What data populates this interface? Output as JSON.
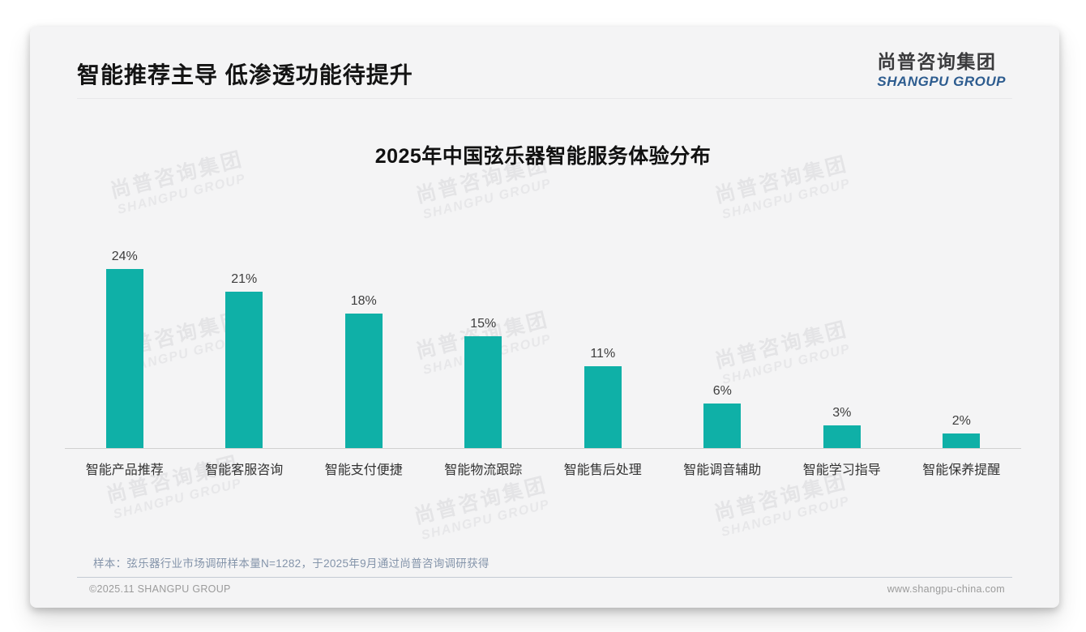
{
  "page_title": "智能推荐主导 低渗透功能待提升",
  "logo": {
    "cn": "尚普咨询集团",
    "en": "SHANGPU GROUP"
  },
  "watermark": {
    "line1": "尚普咨询集团",
    "line2": "SHANGPU GROUP"
  },
  "chart_data": {
    "type": "bar",
    "title": "2025年中国弦乐器智能服务体验分布",
    "categories": [
      "智能产品推荐",
      "智能客服咨询",
      "智能支付便捷",
      "智能物流跟踪",
      "智能售后处理",
      "智能调音辅助",
      "智能学习指导",
      "智能保养提醒"
    ],
    "values": [
      24,
      21,
      18,
      15,
      11,
      6,
      3,
      2
    ],
    "unit": "%",
    "xlabel": "",
    "ylabel": "",
    "ylim": [
      0,
      26
    ],
    "grid": false,
    "legend": false,
    "data_labels": true,
    "bar_color": "#0fb0a7"
  },
  "note": "样本：弦乐器行业市场调研样本量N=1282，于2025年9月通过尚普咨询调研获得",
  "footer": {
    "copyright": "©2025.11 SHANGPU GROUP",
    "website": "www.shangpu-china.com"
  },
  "colors": {
    "accent": "#0fb0a7",
    "logo_blue": "#2d5c8f",
    "note_blue_gray": "#8494aa"
  }
}
